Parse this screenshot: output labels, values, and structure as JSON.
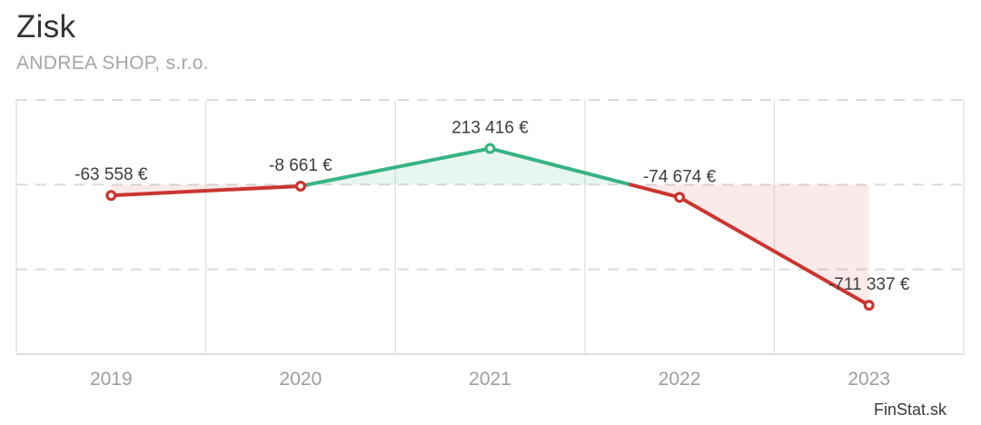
{
  "page": {
    "title": "Zisk",
    "subtitle": "ANDREA SHOP, s.r.o.",
    "watermark": "FinStat.sk"
  },
  "chart_data": {
    "type": "line",
    "title": "Zisk",
    "xlabel": "",
    "ylabel": "",
    "categories": [
      "2019",
      "2020",
      "2021",
      "2022",
      "2023"
    ],
    "values": [
      -63558,
      -8661,
      213416,
      -74674,
      -711337
    ],
    "value_labels": [
      "-63 558 €",
      "-8 661 €",
      "213 416 €",
      "-74 674 €",
      "-711 337 €"
    ],
    "ylim": [
      -1000000,
      500000
    ],
    "gridline_step": 500000,
    "baseline": 0,
    "grid": "on",
    "legend": "none",
    "colors": {
      "positive": "#38b383",
      "negative": "#cb352f",
      "positive_fill_rgba": "rgba(56,179,131,0.12)",
      "negative_fill_rgba": "rgba(203,53,47,0.10)",
      "marker_core": "#ffffff",
      "grid_solid": "#e4e4e4",
      "grid_dashed": "#dbdbdb",
      "axis_line": "#e0e0e0",
      "axis_text": "#9e9e9e",
      "label_text": "#3d3d3d",
      "title_text": "#333333",
      "subtitle_text": "#a6a6a6"
    }
  }
}
